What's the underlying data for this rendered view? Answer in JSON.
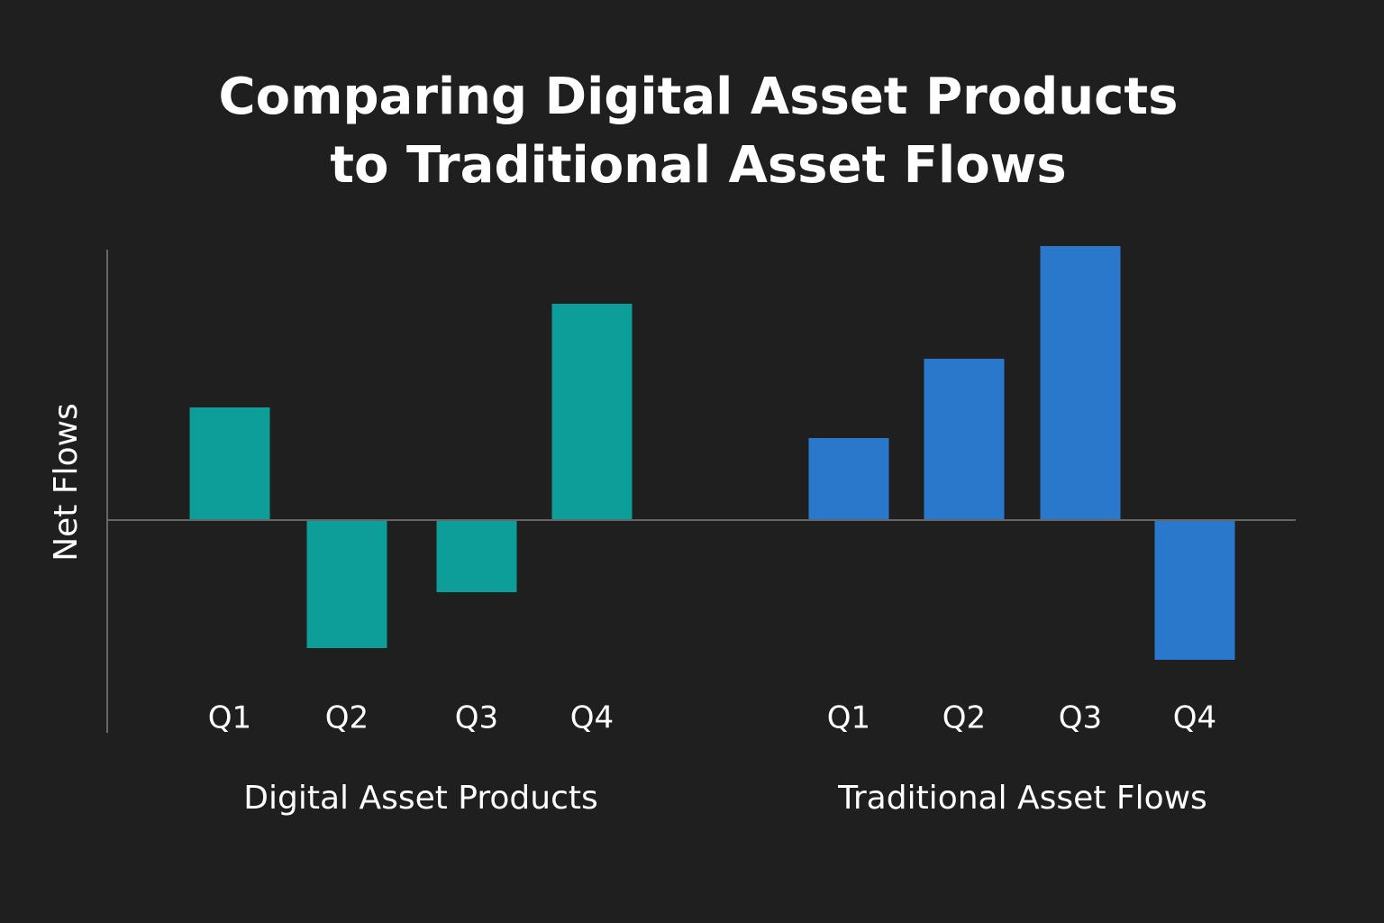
{
  "chart_data": {
    "type": "bar",
    "title": "Comparing Digital Asset Products to Traditional Asset Flows",
    "ylabel": "Net Flows",
    "ylim": [
      -236,
      304
    ],
    "groups": [
      {
        "label": "Digital Asset Products",
        "color": "#0e9e99",
        "categories": [
          "Q1",
          "Q2",
          "Q3",
          "Q4"
        ],
        "values": [
          125,
          -142,
          -80,
          240
        ]
      },
      {
        "label": "Traditional Asset Flows",
        "color": "#2a78cc",
        "categories": [
          "Q1",
          "Q2",
          "Q3",
          "Q4"
        ],
        "values": [
          91,
          179,
          304,
          -155
        ]
      }
    ]
  }
}
